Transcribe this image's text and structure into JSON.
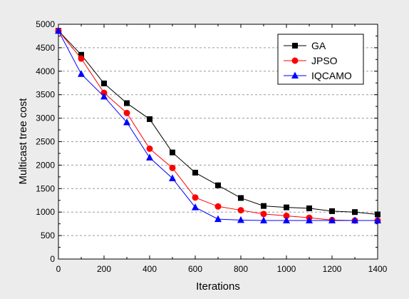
{
  "chart_data": {
    "type": "line",
    "xlabel": "Iterations",
    "ylabel": "Multicast tree cost",
    "xlim": [
      0,
      1400
    ],
    "ylim": [
      0,
      5000
    ],
    "x_ticks": [
      0,
      200,
      400,
      600,
      800,
      1000,
      1200,
      1400
    ],
    "y_ticks": [
      0,
      500,
      1000,
      1500,
      2000,
      2500,
      3000,
      3500,
      4000,
      4500,
      5000
    ],
    "grid": "horizontal dashed",
    "legend_position": "top-right",
    "x": [
      0,
      100,
      200,
      300,
      400,
      500,
      600,
      700,
      800,
      900,
      1000,
      1100,
      1200,
      1300,
      1400
    ],
    "series": [
      {
        "name": "GA",
        "marker": "square",
        "color": "#000000",
        "values": [
          4860,
          4350,
          3740,
          3320,
          2980,
          2270,
          1840,
          1570,
          1300,
          1130,
          1100,
          1080,
          1020,
          1000,
          950
        ]
      },
      {
        "name": "JPSO",
        "marker": "circle",
        "color": "#ff0000",
        "values": [
          4860,
          4270,
          3540,
          3110,
          2350,
          1940,
          1310,
          1120,
          1040,
          960,
          920,
          880,
          830,
          820,
          820
        ]
      },
      {
        "name": "IQCAMO",
        "marker": "triangle",
        "color": "#0000ff",
        "values": [
          4860,
          3940,
          3460,
          2910,
          2160,
          1720,
          1100,
          850,
          830,
          820,
          820,
          820,
          820,
          820,
          820
        ]
      }
    ]
  }
}
